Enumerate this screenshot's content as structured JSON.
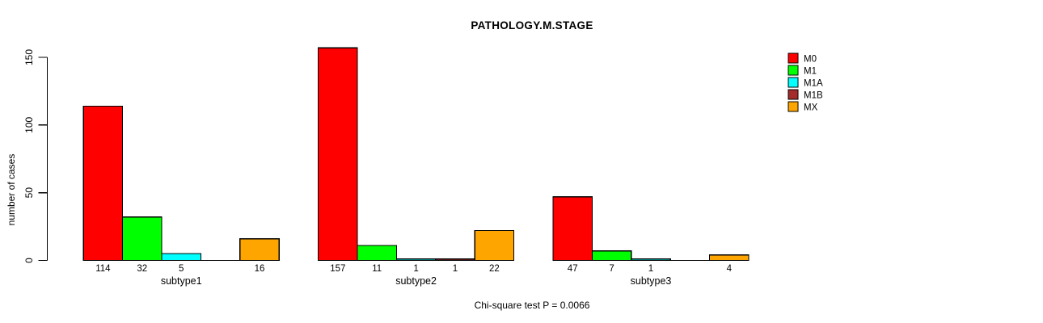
{
  "chart_data": {
    "type": "bar",
    "title": "PATHOLOGY.M.STAGE",
    "xlabel": "",
    "ylabel": "number of cases",
    "ylim": [
      0,
      150
    ],
    "yticks": [
      0,
      50,
      100,
      150
    ],
    "grid": false,
    "legend_position": "top-right",
    "categories": [
      "subtype1",
      "subtype2",
      "subtype3"
    ],
    "series": [
      {
        "name": "M0",
        "color": "#FF0000",
        "values": [
          114,
          157,
          47
        ]
      },
      {
        "name": "M1",
        "color": "#00FF00",
        "values": [
          32,
          11,
          7
        ]
      },
      {
        "name": "M1A",
        "color": "#00FFFF",
        "values": [
          5,
          1,
          1
        ]
      },
      {
        "name": "M1B",
        "color": "#A52A2A",
        "values": [
          0,
          1,
          0
        ]
      },
      {
        "name": "MX",
        "color": "#FFA500",
        "values": [
          16,
          22,
          4
        ]
      }
    ],
    "bar_labels": [
      [
        "114",
        "32",
        "5",
        "",
        "16"
      ],
      [
        "157",
        "11",
        "1",
        "1",
        "22"
      ],
      [
        "47",
        "7",
        "1",
        "",
        "4"
      ]
    ],
    "annotation": "Chi-square test P = 0.0066",
    "axis_color": "#000000",
    "bar_border_color": "#000000"
  }
}
